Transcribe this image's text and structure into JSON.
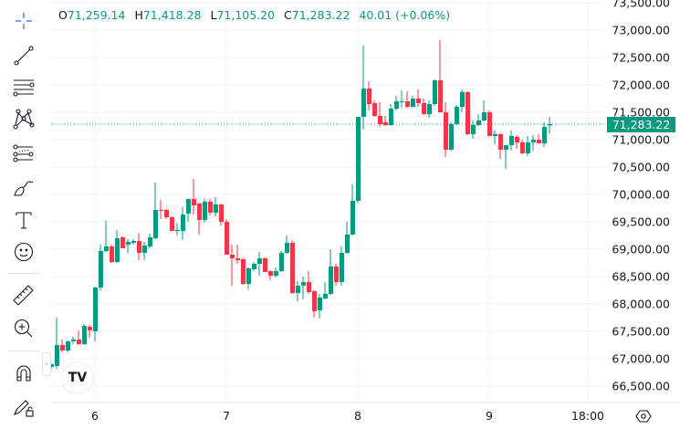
{
  "legend": {
    "o_label": "O",
    "o_value": "71,259.14",
    "h_label": "H",
    "h_value": "71,418.28",
    "l_label": "L",
    "l_value": "71,105.20",
    "c_label": "C",
    "c_value": "71,283.22",
    "change": "40.01 (+0.06%)"
  },
  "toolbar": {
    "tools": [
      "crosshair-icon",
      "trend-line-icon",
      "fib-retracement-icon",
      "xabcd-pattern-icon",
      "forecast-icon",
      "brush-icon",
      "text-icon",
      "emoji-icon",
      "ruler-icon",
      "zoom-in-icon",
      "magnet-icon",
      "lock-drawings-icon"
    ]
  },
  "logo_text": "TV",
  "last_price_label": "71,283.22",
  "colors": {
    "up": "#089981",
    "down": "#f23645",
    "grid": "#f0f3fa",
    "last_price": "#089981"
  },
  "chart_data": {
    "type": "candlestick",
    "interval": "1h",
    "ylim": [
      66500,
      73500
    ],
    "y_ticks": [
      "66,500.00",
      "67,000.00",
      "67,500.00",
      "68,000.00",
      "68,500.00",
      "69,000.00",
      "69,500.00",
      "70,000.00",
      "70,500.00",
      "71,000.00",
      "71,500.00",
      "72,000.00",
      "72,500.00",
      "73,000.00",
      "73,500.00"
    ],
    "x_ticks": [
      "6",
      "7",
      "8",
      "9",
      "18:00"
    ],
    "grid": true,
    "last_price": 71283.22,
    "candles": [
      [
        66850,
        66917,
        66817,
        66900
      ],
      [
        66867,
        67750,
        66817,
        67250
      ],
      [
        67250,
        67350,
        67117,
        67150
      ],
      [
        67150,
        67333,
        67117,
        67317
      ],
      [
        67317,
        67400,
        67267,
        67350
      ],
      [
        67350,
        67517,
        67250,
        67267
      ],
      [
        67267,
        67633,
        67250,
        67600
      ],
      [
        67583,
        67617,
        67383,
        67517
      ],
      [
        67500,
        68317,
        67317,
        68300
      ],
      [
        68300,
        69083,
        68250,
        68967
      ],
      [
        68967,
        69517,
        68950,
        69050
      ],
      [
        69050,
        69083,
        68750,
        68767
      ],
      [
        68767,
        69350,
        68750,
        69200
      ],
      [
        69217,
        69233,
        69017,
        69017
      ],
      [
        69083,
        69183,
        68933,
        69133
      ],
      [
        69117,
        69183,
        69083,
        69150
      ],
      [
        69150,
        69300,
        68800,
        68933
      ],
      [
        68933,
        69133,
        68800,
        69067
      ],
      [
        69050,
        69283,
        69017,
        69217
      ],
      [
        69200,
        70217,
        69183,
        69717
      ],
      [
        69717,
        69900,
        69550,
        69700
      ],
      [
        69717,
        69733,
        69550,
        69583
      ],
      [
        69583,
        69600,
        69333,
        69333
      ],
      [
        69333,
        69483,
        69250,
        69350
      ],
      [
        69333,
        69767,
        69167,
        69633
      ],
      [
        69650,
        69917,
        69500,
        69917
      ],
      [
        69917,
        70283,
        69633,
        69800
      ],
      [
        69833,
        69850,
        69267,
        69533
      ],
      [
        69533,
        69917,
        69483,
        69867
      ],
      [
        69867,
        69917,
        69617,
        69667
      ],
      [
        69667,
        69950,
        69600,
        69817
      ],
      [
        69817,
        69833,
        69433,
        69500
      ],
      [
        69500,
        69550,
        68900,
        68900
      ],
      [
        68900,
        69083,
        68333,
        68833
      ],
      [
        68833,
        69083,
        68733,
        68800
      ],
      [
        68817,
        68833,
        68350,
        68367
      ],
      [
        68367,
        68667,
        68267,
        68650
      ],
      [
        68633,
        68767,
        68600,
        68733
      ],
      [
        68733,
        68950,
        68517,
        68833
      ],
      [
        68833,
        68850,
        68583,
        68583
      ],
      [
        68600,
        68617,
        68433,
        68517
      ],
      [
        68517,
        68667,
        68483,
        68600
      ],
      [
        68600,
        68967,
        68583,
        68933
      ],
      [
        68933,
        69250,
        68917,
        69117
      ],
      [
        69117,
        69167,
        68183,
        68200
      ],
      [
        68200,
        68417,
        68050,
        68333
      ],
      [
        68333,
        68500,
        68083,
        68400
      ],
      [
        68400,
        68600,
        68183,
        68217
      ],
      [
        68233,
        68250,
        67750,
        67867
      ],
      [
        67883,
        68183,
        67733,
        68117
      ],
      [
        68100,
        68400,
        68083,
        68183
      ],
      [
        68183,
        69000,
        68167,
        68683
      ],
      [
        68683,
        68733,
        68333,
        68400
      ],
      [
        68400,
        69050,
        68333,
        68933
      ],
      [
        68933,
        69500,
        68917,
        69267
      ],
      [
        69267,
        70183,
        69250,
        69883
      ],
      [
        69883,
        71417,
        69850,
        71417
      ],
      [
        71417,
        72717,
        71183,
        71933
      ],
      [
        71933,
        72067,
        71533,
        71650
      ],
      [
        71667,
        71717,
        71417,
        71433
      ],
      [
        71433,
        71683,
        71233,
        71283
      ],
      [
        71317,
        71433,
        71250,
        71267
      ],
      [
        71267,
        71650,
        71250,
        71567
      ],
      [
        71567,
        71800,
        71533,
        71700
      ],
      [
        71700,
        71900,
        71583,
        71700
      ],
      [
        71700,
        71883,
        71583,
        71600
      ],
      [
        71600,
        71800,
        71583,
        71750
      ],
      [
        71750,
        71917,
        71600,
        71667
      ],
      [
        71667,
        71750,
        71450,
        71467
      ],
      [
        71467,
        71717,
        71400,
        71650
      ],
      [
        71650,
        72100,
        71617,
        72083
      ],
      [
        72083,
        72817,
        71500,
        71500
      ],
      [
        71500,
        71683,
        70683,
        70817
      ],
      [
        70817,
        71317,
        70800,
        71283
      ],
      [
        71283,
        71633,
        71267,
        71600
      ],
      [
        71600,
        71917,
        71500,
        71867
      ],
      [
        71867,
        71883,
        71083,
        71100
      ],
      [
        71100,
        71350,
        71017,
        71267
      ],
      [
        71267,
        71467,
        71250,
        71350
      ],
      [
        71350,
        71717,
        71333,
        71500
      ],
      [
        71500,
        71533,
        71067,
        71067
      ],
      [
        71067,
        71167,
        70917,
        71100
      ],
      [
        71100,
        71117,
        70650,
        70817
      ],
      [
        70817,
        70900,
        70467,
        70900
      ],
      [
        70900,
        71167,
        70800,
        71067
      ],
      [
        71050,
        71083,
        70833,
        70950
      ],
      [
        70950,
        71000,
        70733,
        70750
      ],
      [
        70750,
        71067,
        70700,
        70950
      ],
      [
        70950,
        71083,
        70800,
        71000
      ],
      [
        71000,
        71100,
        70933,
        70933
      ],
      [
        70933,
        71317,
        70867,
        71233
      ],
      [
        71259.14,
        71418.28,
        71105.2,
        71283.22
      ]
    ]
  }
}
